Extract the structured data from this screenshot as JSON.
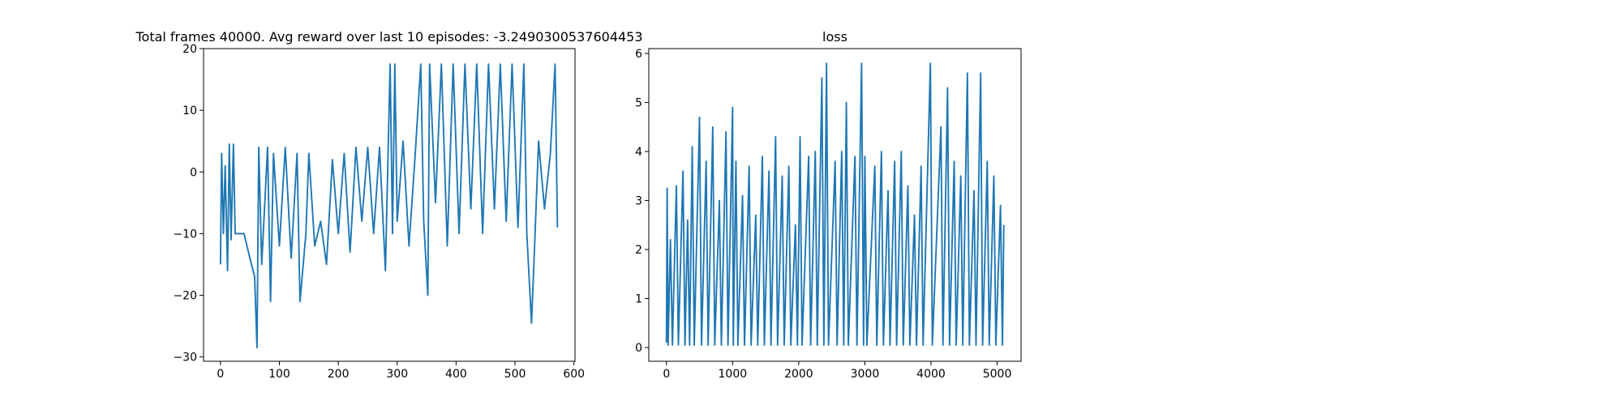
{
  "chart_data": [
    {
      "type": "line",
      "title": "Total frames 40000. Avg reward over last 10 episodes: -3.2490300537604453",
      "xlim": [
        -28.7,
        601.8
      ],
      "ylim": [
        -30.7,
        20
      ],
      "xticks": [
        0,
        100,
        200,
        300,
        400,
        500,
        600
      ],
      "yticks": [
        {
          "value": -30,
          "label": "−30"
        },
        {
          "value": -20,
          "label": "−20"
        },
        {
          "value": -10,
          "label": "−10"
        },
        0,
        10,
        20
      ],
      "x": [
        0,
        2,
        5,
        8,
        12,
        15,
        18,
        22,
        25,
        40,
        50,
        58,
        62,
        65,
        70,
        80,
        85,
        90,
        100,
        110,
        120,
        130,
        135,
        145,
        150,
        160,
        170,
        180,
        190,
        200,
        210,
        220,
        230,
        240,
        250,
        260,
        270,
        280,
        288,
        292,
        296,
        300,
        310,
        320,
        330,
        340,
        345,
        352,
        355,
        365,
        375,
        385,
        395,
        405,
        415,
        425,
        435,
        445,
        455,
        465,
        475,
        485,
        495,
        505,
        515,
        520,
        528,
        532,
        540,
        550,
        560,
        568,
        572
      ],
      "series": [
        {
          "color": "#1f77b4",
          "values": [
            -15,
            3,
            -10,
            1,
            -16,
            4.5,
            -11,
            4.5,
            -10,
            -10,
            -14,
            -17,
            -28.5,
            4,
            -15,
            4,
            -21,
            3,
            -12,
            4,
            -14,
            3,
            -21,
            -10,
            3,
            -12,
            -8,
            -15,
            2,
            -10,
            3,
            -13,
            4,
            -8,
            4,
            -10,
            4,
            -16,
            17.5,
            -10,
            17.5,
            -8,
            5,
            -12,
            2,
            17.5,
            -8,
            -20,
            17.5,
            -5,
            17.5,
            -12,
            17.5,
            -10,
            17.5,
            -6,
            17.5,
            -10,
            17.5,
            -6,
            17.5,
            -8,
            17.5,
            -9,
            17.5,
            -10,
            -24.5,
            -15,
            5,
            -6,
            3,
            17.5,
            -9
          ]
        }
      ]
    },
    {
      "type": "line",
      "title": "loss",
      "xlim": [
        -267,
        5361
      ],
      "ylim": [
        -0.28,
        6.1
      ],
      "xticks": [
        0,
        1000,
        2000,
        3000,
        4000,
        5000
      ],
      "yticks": [
        0,
        1,
        2,
        3,
        4,
        5,
        6
      ],
      "x": [
        0,
        10,
        25,
        60,
        90,
        150,
        180,
        250,
        280,
        320,
        350,
        390,
        420,
        500,
        530,
        600,
        630,
        700,
        730,
        800,
        830,
        900,
        930,
        1000,
        1010,
        1050,
        1080,
        1150,
        1180,
        1250,
        1280,
        1350,
        1380,
        1450,
        1480,
        1550,
        1580,
        1650,
        1680,
        1750,
        1780,
        1850,
        1880,
        1950,
        1980,
        2020,
        2050,
        2150,
        2180,
        2250,
        2280,
        2350,
        2380,
        2420,
        2450,
        2550,
        2580,
        2650,
        2680,
        2720,
        2750,
        2850,
        2880,
        2950,
        2980,
        3000,
        3030,
        3150,
        3180,
        3250,
        3280,
        3350,
        3380,
        3450,
        3480,
        3550,
        3580,
        3650,
        3680,
        3750,
        3780,
        3850,
        3880,
        3990,
        4020,
        4150,
        4180,
        4250,
        4280,
        4350,
        4380,
        4450,
        4480,
        4550,
        4580,
        4650,
        4680,
        4750,
        4780,
        4850,
        4880,
        4950,
        4980,
        5050,
        5080,
        5100
      ],
      "series": [
        {
          "color": "#1f77b4",
          "values": [
            0.1,
            3.25,
            0.05,
            2.2,
            0.05,
            3.3,
            0.05,
            3.6,
            0.05,
            2.6,
            0.05,
            4.1,
            0.05,
            4.7,
            0.05,
            3.8,
            0.05,
            4.5,
            0.05,
            3.0,
            0.05,
            4.4,
            0.05,
            4.9,
            0.05,
            3.8,
            0.05,
            3.1,
            0.05,
            3.7,
            0.05,
            2.7,
            0.05,
            3.9,
            0.05,
            3.6,
            0.05,
            4.3,
            0.05,
            3.5,
            0.05,
            3.7,
            0.05,
            2.5,
            0.05,
            4.3,
            0.05,
            3.9,
            0.05,
            4.0,
            0.05,
            5.5,
            0.05,
            5.8,
            0.05,
            3.8,
            0.05,
            4.0,
            0.05,
            5.0,
            0.05,
            3.9,
            0.05,
            5.8,
            0.05,
            3.9,
            0.05,
            3.7,
            0.05,
            4.0,
            0.05,
            3.2,
            0.05,
            3.8,
            0.05,
            4.0,
            0.05,
            3.3,
            0.05,
            2.7,
            0.05,
            3.7,
            0.05,
            5.8,
            0.05,
            4.5,
            0.05,
            5.3,
            0.05,
            3.8,
            0.05,
            3.5,
            0.05,
            5.6,
            0.05,
            3.2,
            0.05,
            5.6,
            0.05,
            3.8,
            0.05,
            3.5,
            0.05,
            2.9,
            0.05,
            2.5
          ]
        }
      ]
    }
  ]
}
